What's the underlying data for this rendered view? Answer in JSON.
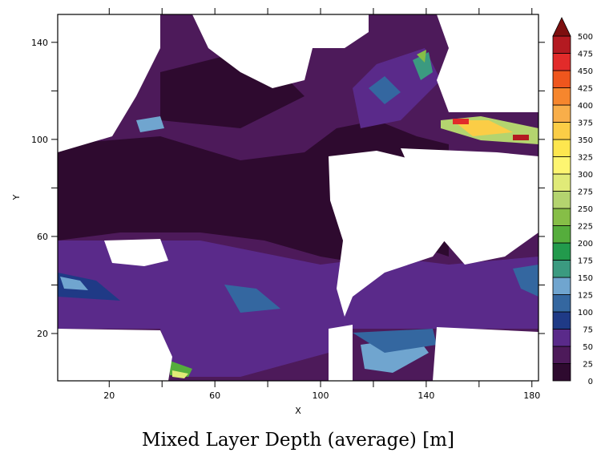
{
  "chart_data": {
    "type": "heatmap",
    "title": "Mixed Layer Depth (average) [m]",
    "xlabel": "X",
    "ylabel": "Y",
    "xlim": [
      0.5,
      182.5
    ],
    "ylim": [
      0.5,
      151.5
    ],
    "xticks": [
      20,
      60,
      100,
      140,
      180
    ],
    "xminor": [
      40,
      80,
      120,
      160
    ],
    "yticks": [
      20,
      60,
      100,
      140
    ],
    "yminor": [
      40,
      80,
      120
    ],
    "grid": false,
    "missing_color": "#ffffff",
    "colorbar": {
      "position": "right",
      "levels": [
        0,
        25,
        50,
        75,
        100,
        125,
        150,
        175,
        200,
        225,
        250,
        275,
        300,
        325,
        350,
        375,
        400,
        425,
        450,
        475,
        500
      ],
      "labels": [
        "0",
        "25",
        "50",
        "75",
        "100",
        "125",
        "150",
        "175",
        "200",
        "225",
        "250",
        "275",
        "300",
        "325",
        "350",
        "375",
        "400",
        "425",
        "450",
        "475",
        "500"
      ],
      "colors": [
        "#2e0a2f",
        "#4d1a5a",
        "#5a2a8a",
        "#1f3a86",
        "#3467a0",
        "#70a5cf",
        "#3b9a80",
        "#229a4c",
        "#55ad3c",
        "#86be47",
        "#b4d46f",
        "#e0ea78",
        "#fdf571",
        "#fde64f",
        "#fbcd46",
        "#f8ae4a",
        "#f6862d",
        "#ef561d",
        "#e22b2a",
        "#b41a21"
      ],
      "over_color": "#7d0f0f"
    }
  }
}
